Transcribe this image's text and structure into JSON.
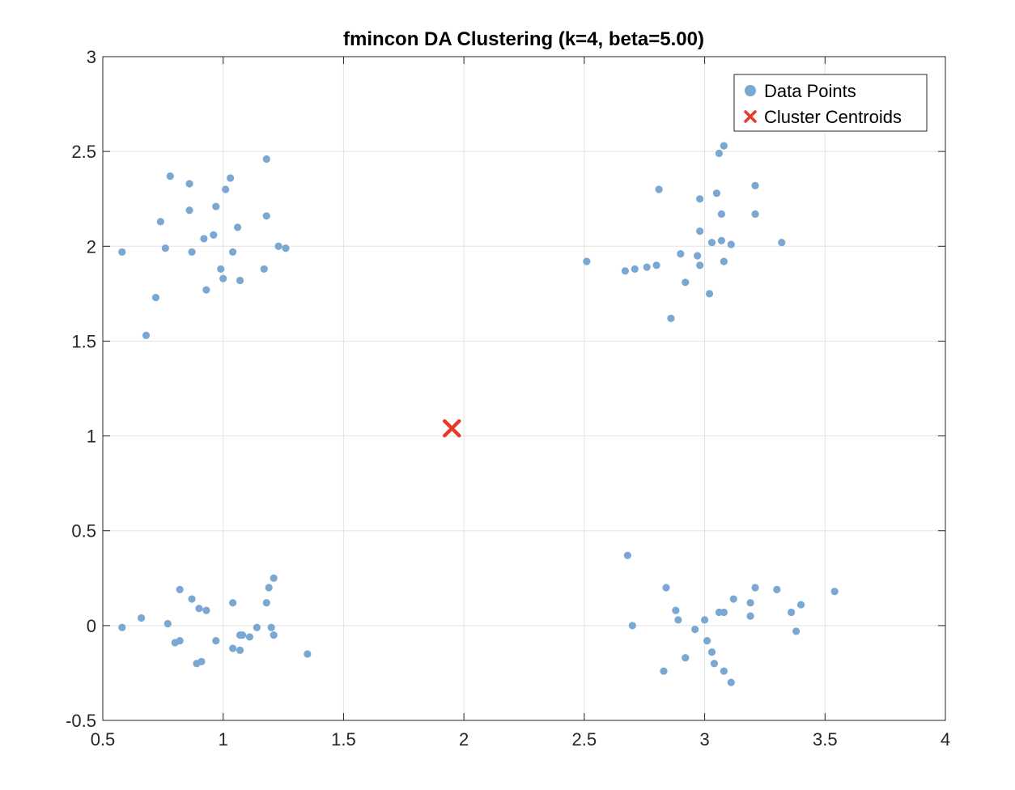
{
  "chart_data": {
    "type": "scatter",
    "title": "fmincon DA Clustering (k=4, beta=5.00)",
    "xlabel": "",
    "ylabel": "",
    "xlim": [
      0.5,
      4
    ],
    "ylim": [
      -0.5,
      3
    ],
    "xticks": [
      "0.5",
      "1",
      "1.5",
      "2",
      "2.5",
      "3",
      "3.5",
      "4"
    ],
    "yticks": [
      "-0.5",
      "0",
      "0.5",
      "1",
      "1.5",
      "2",
      "2.5",
      "3"
    ],
    "grid": true,
    "legend_position": "top-right",
    "colors": {
      "points": "#7ba7d3",
      "centroids": "#e8392c"
    },
    "series": [
      {
        "name": "Data Points",
        "marker": "circle",
        "points": [
          [
            0.58,
            1.97
          ],
          [
            0.68,
            1.53
          ],
          [
            0.72,
            1.73
          ],
          [
            0.74,
            2.13
          ],
          [
            0.76,
            1.99
          ],
          [
            0.78,
            2.37
          ],
          [
            0.86,
            2.33
          ],
          [
            0.86,
            2.19
          ],
          [
            0.87,
            1.97
          ],
          [
            0.92,
            2.04
          ],
          [
            0.93,
            1.77
          ],
          [
            0.96,
            2.06
          ],
          [
            0.97,
            2.21
          ],
          [
            0.99,
            1.88
          ],
          [
            1.0,
            1.83
          ],
          [
            1.01,
            2.3
          ],
          [
            1.03,
            2.36
          ],
          [
            1.04,
            1.97
          ],
          [
            1.06,
            2.1
          ],
          [
            1.07,
            1.82
          ],
          [
            1.17,
            1.88
          ],
          [
            1.18,
            2.16
          ],
          [
            1.18,
            2.46
          ],
          [
            1.23,
            2.0
          ],
          [
            1.26,
            1.99
          ],
          [
            0.58,
            -0.01
          ],
          [
            0.66,
            0.04
          ],
          [
            0.77,
            0.01
          ],
          [
            0.8,
            -0.09
          ],
          [
            0.82,
            0.19
          ],
          [
            0.82,
            -0.08
          ],
          [
            0.87,
            0.14
          ],
          [
            0.89,
            -0.2
          ],
          [
            0.9,
            0.09
          ],
          [
            0.91,
            -0.19
          ],
          [
            0.93,
            0.08
          ],
          [
            0.97,
            -0.08
          ],
          [
            1.04,
            0.12
          ],
          [
            1.04,
            -0.12
          ],
          [
            1.07,
            -0.05
          ],
          [
            1.07,
            -0.13
          ],
          [
            1.08,
            -0.05
          ],
          [
            1.11,
            -0.06
          ],
          [
            1.14,
            -0.01
          ],
          [
            1.18,
            0.12
          ],
          [
            1.19,
            0.2
          ],
          [
            1.2,
            -0.01
          ],
          [
            1.21,
            0.25
          ],
          [
            1.21,
            -0.05
          ],
          [
            1.35,
            -0.15
          ],
          [
            2.51,
            1.92
          ],
          [
            2.67,
            1.87
          ],
          [
            2.71,
            1.88
          ],
          [
            2.76,
            1.89
          ],
          [
            2.8,
            1.9
          ],
          [
            2.81,
            2.3
          ],
          [
            2.86,
            1.62
          ],
          [
            2.9,
            1.96
          ],
          [
            2.92,
            1.81
          ],
          [
            2.97,
            1.95
          ],
          [
            2.98,
            1.9
          ],
          [
            2.98,
            2.08
          ],
          [
            2.98,
            2.25
          ],
          [
            3.02,
            1.75
          ],
          [
            3.03,
            2.02
          ],
          [
            3.05,
            2.28
          ],
          [
            3.06,
            2.49
          ],
          [
            3.07,
            2.17
          ],
          [
            3.07,
            2.03
          ],
          [
            3.08,
            2.53
          ],
          [
            3.08,
            1.92
          ],
          [
            3.11,
            2.01
          ],
          [
            3.21,
            2.17
          ],
          [
            3.21,
            2.32
          ],
          [
            3.32,
            2.02
          ],
          [
            2.68,
            0.37
          ],
          [
            2.7,
            0.0
          ],
          [
            2.83,
            -0.24
          ],
          [
            2.84,
            0.2
          ],
          [
            2.88,
            0.08
          ],
          [
            2.89,
            0.03
          ],
          [
            2.92,
            -0.17
          ],
          [
            2.96,
            -0.02
          ],
          [
            3.0,
            0.03
          ],
          [
            3.01,
            -0.08
          ],
          [
            3.03,
            -0.14
          ],
          [
            3.04,
            -0.2
          ],
          [
            3.06,
            0.07
          ],
          [
            3.08,
            0.07
          ],
          [
            3.08,
            -0.24
          ],
          [
            3.11,
            -0.3
          ],
          [
            3.12,
            0.14
          ],
          [
            3.19,
            0.12
          ],
          [
            3.19,
            0.05
          ],
          [
            3.21,
            0.2
          ],
          [
            3.3,
            0.19
          ],
          [
            3.36,
            0.07
          ],
          [
            3.38,
            -0.03
          ],
          [
            3.4,
            0.11
          ],
          [
            3.54,
            0.18
          ]
        ]
      },
      {
        "name": "Cluster Centroids",
        "marker": "x",
        "points": [
          [
            1.95,
            1.04
          ]
        ]
      }
    ]
  }
}
